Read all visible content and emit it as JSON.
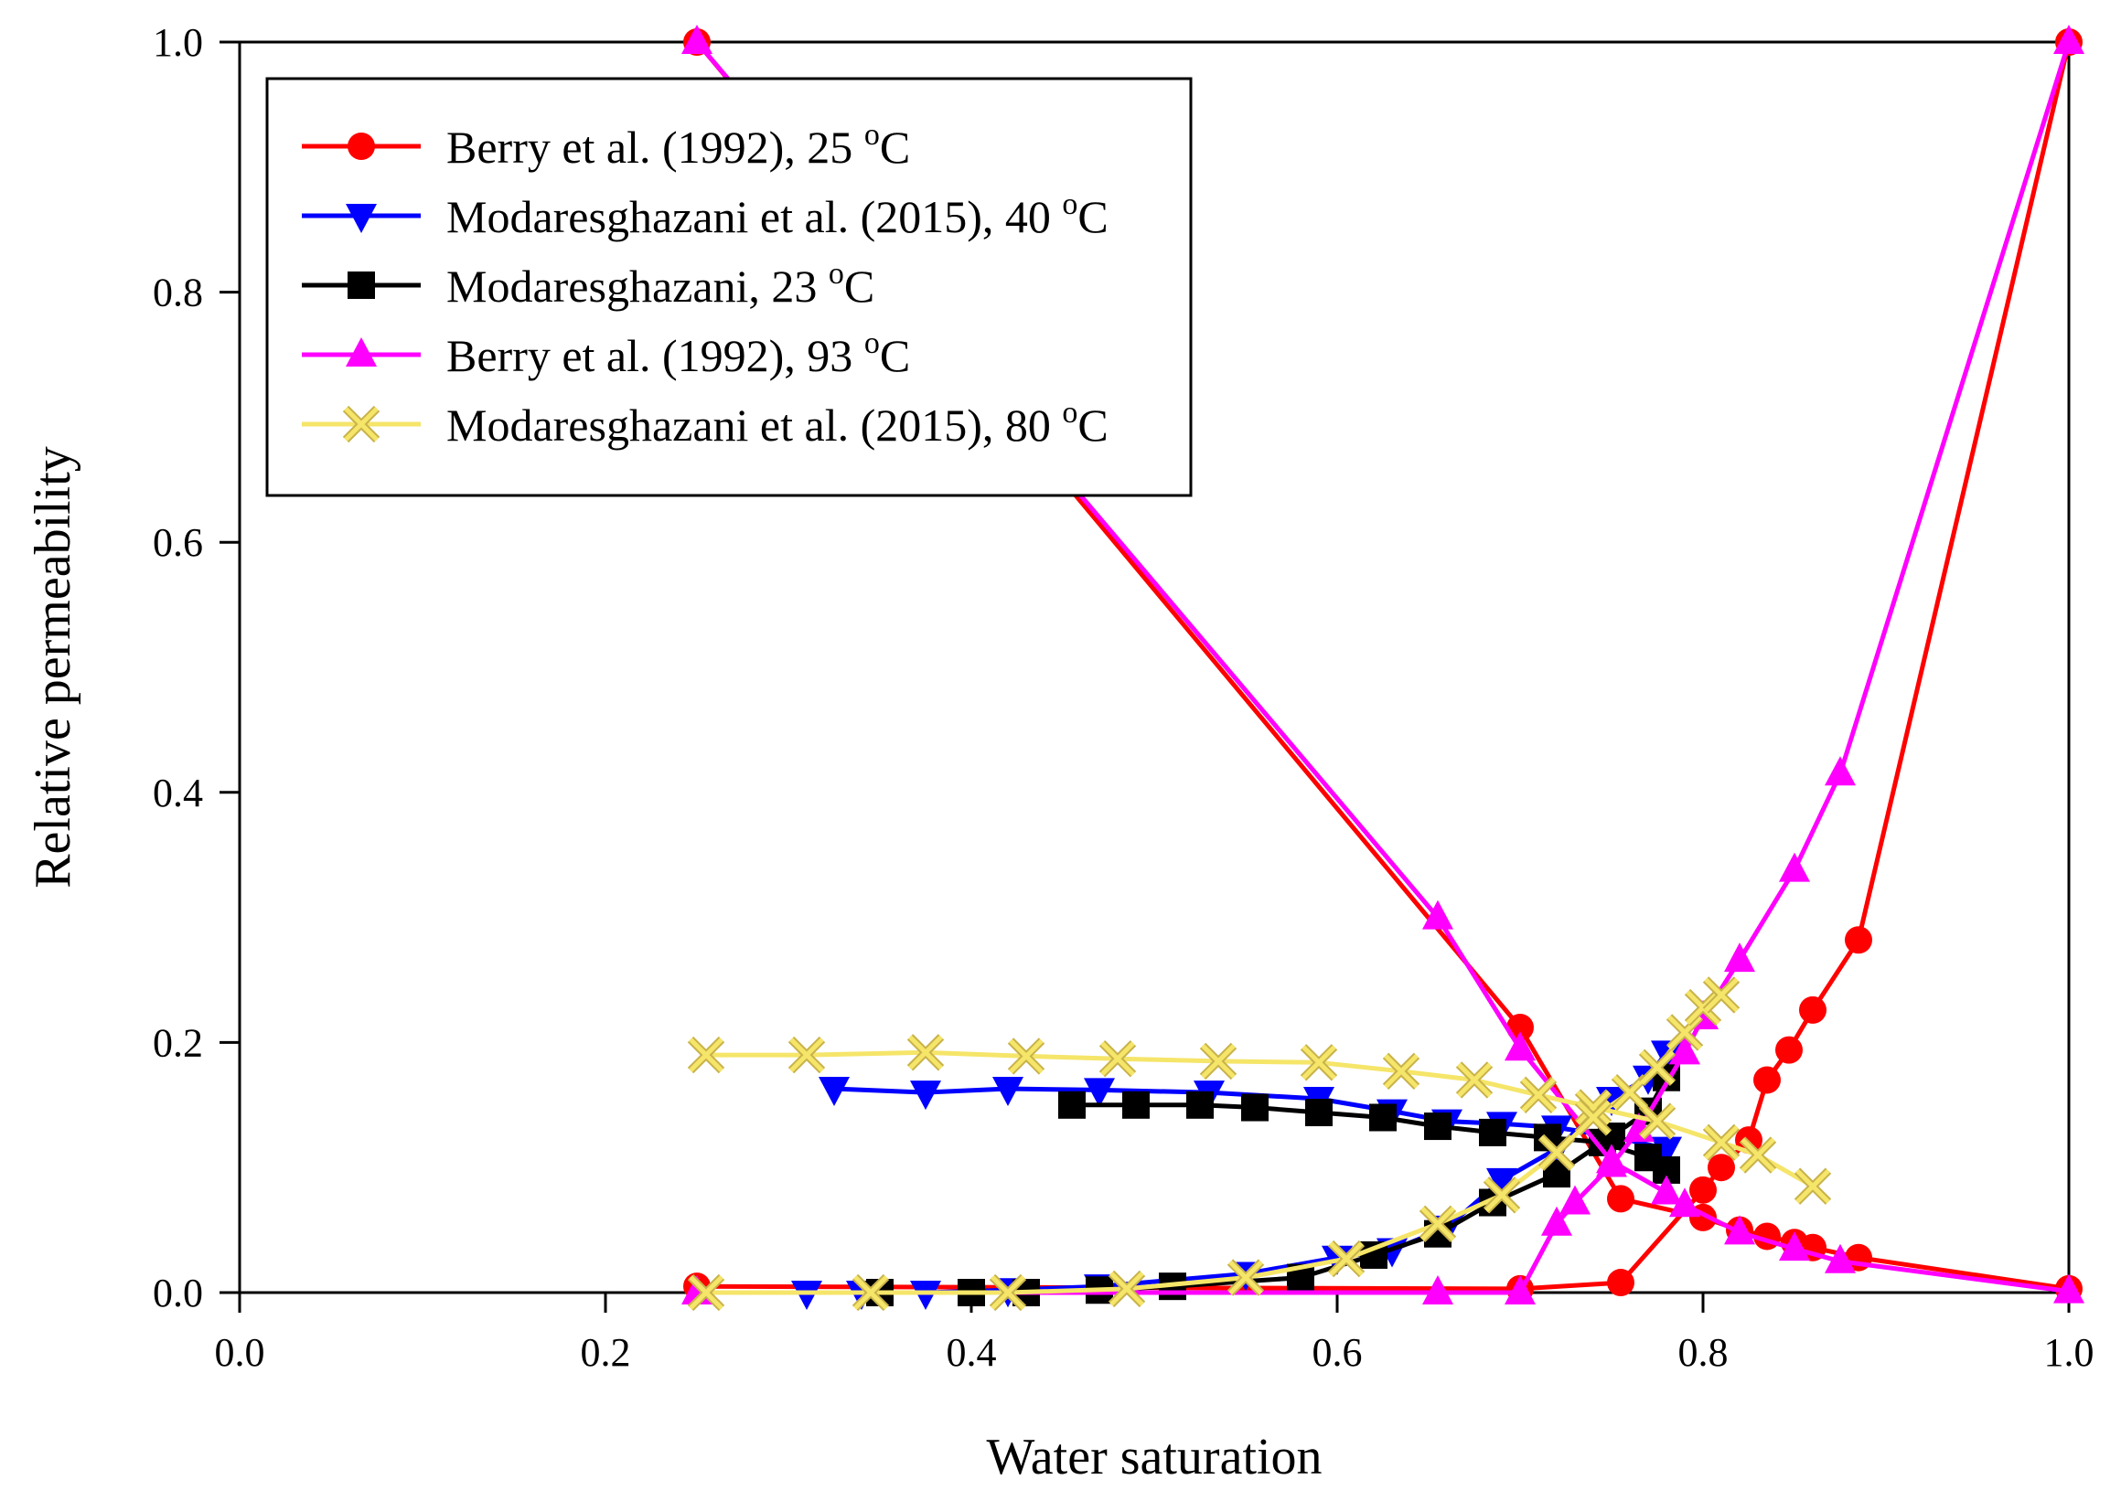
{
  "chart_data": {
    "type": "line",
    "xlabel": "Water saturation",
    "ylabel": "Relative permeability",
    "xlim": [
      0.0,
      1.0
    ],
    "ylim": [
      0.0,
      1.0
    ],
    "xticks": [
      "0.0",
      "0.2",
      "0.4",
      "0.6",
      "0.8",
      "1.0"
    ],
    "yticks": [
      "0.0",
      "0.2",
      "0.4",
      "0.6",
      "0.8",
      "1.0"
    ],
    "grid": false,
    "legend_position": "top-left",
    "series": [
      {
        "name": "Berry et al. (1992), 25",
        "unit_sup": "o",
        "unit": "C",
        "color": "#ff0000",
        "marker": "circle",
        "curves": [
          {
            "x": [
              0.25,
              0.7,
              0.755,
              0.8,
              0.82,
              0.835,
              0.85,
              0.86,
              0.885,
              1.0
            ],
            "y": [
              1.0,
              0.212,
              0.075,
              0.06,
              0.05,
              0.045,
              0.04,
              0.036,
              0.028,
              0.003
            ]
          },
          {
            "x": [
              0.25,
              0.7,
              0.755,
              0.8,
              0.81,
              0.825,
              0.835,
              0.847,
              0.86,
              0.885,
              1.0
            ],
            "y": [
              0.005,
              0.003,
              0.008,
              0.082,
              0.1,
              0.122,
              0.17,
              0.194,
              0.226,
              0.282,
              1.0
            ]
          }
        ]
      },
      {
        "name": "Modaresghazani et al. (2015), 40",
        "unit_sup": "o",
        "unit": "C",
        "color": "#0000ff",
        "marker": "triangle-down",
        "curves": [
          {
            "x": [
              0.325,
              0.375,
              0.42,
              0.47,
              0.53,
              0.59,
              0.63,
              0.66,
              0.69,
              0.72,
              0.75,
              0.78
            ],
            "y": [
              0.163,
              0.16,
              0.163,
              0.162,
              0.16,
              0.155,
              0.145,
              0.137,
              0.135,
              0.132,
              0.125,
              0.115
            ]
          },
          {
            "x": [
              0.31,
              0.34,
              0.375,
              0.42,
              0.47,
              0.55,
              0.6,
              0.63,
              0.66,
              0.69,
              0.72,
              0.75,
              0.77,
              0.78
            ],
            "y": [
              0.0,
              0.0,
              0.0,
              0.002,
              0.005,
              0.015,
              0.028,
              0.034,
              0.052,
              0.09,
              0.115,
              0.155,
              0.172,
              0.192
            ]
          }
        ]
      },
      {
        "name": "Modaresghazani, 23",
        "unit_sup": "o",
        "unit": "C",
        "color": "#000000",
        "marker": "square",
        "curves": [
          {
            "x": [
              0.455,
              0.49,
              0.525,
              0.555,
              0.59,
              0.625,
              0.655,
              0.685,
              0.715,
              0.745,
              0.77,
              0.78
            ],
            "y": [
              0.15,
              0.15,
              0.15,
              0.148,
              0.144,
              0.14,
              0.133,
              0.128,
              0.124,
              0.12,
              0.108,
              0.098
            ]
          },
          {
            "x": [
              0.35,
              0.4,
              0.43,
              0.47,
              0.51,
              0.58,
              0.62,
              0.655,
              0.685,
              0.72,
              0.75,
              0.77,
              0.78
            ],
            "y": [
              0.0,
              0.0,
              0.0,
              0.002,
              0.005,
              0.012,
              0.03,
              0.047,
              0.072,
              0.095,
              0.125,
              0.145,
              0.172
            ]
          }
        ]
      },
      {
        "name": "Berry et al. (1992), 93",
        "unit_sup": "o",
        "unit": "C",
        "color": "#ff00ff",
        "marker": "triangle-up",
        "curves": [
          {
            "x": [
              0.25,
              0.655,
              0.7,
              0.75,
              0.78,
              0.79,
              0.82,
              0.85,
              0.875,
              1.0
            ],
            "y": [
              1.0,
              0.3,
              0.195,
              0.105,
              0.08,
              0.07,
              0.048,
              0.035,
              0.025,
              0.001
            ]
          },
          {
            "x": [
              0.25,
              0.655,
              0.7,
              0.72,
              0.73,
              0.75,
              0.765,
              0.79,
              0.8,
              0.82,
              0.85,
              0.875,
              1.0
            ],
            "y": [
              0.0,
              0.0,
              0.0,
              0.055,
              0.072,
              0.102,
              0.13,
              0.192,
              0.22,
              0.266,
              0.338,
              0.415,
              1.0
            ]
          }
        ]
      },
      {
        "name": "Modaresghazani et al. (2015), 80",
        "unit_sup": "o",
        "unit": "C",
        "color": "#f5e569",
        "marker": "x",
        "curves": [
          {
            "x": [
              0.255,
              0.31,
              0.375,
              0.43,
              0.48,
              0.535,
              0.59,
              0.635,
              0.675,
              0.71,
              0.74,
              0.775,
              0.81,
              0.83,
              0.86
            ],
            "y": [
              0.19,
              0.19,
              0.192,
              0.189,
              0.187,
              0.185,
              0.184,
              0.177,
              0.17,
              0.158,
              0.148,
              0.137,
              0.12,
              0.11,
              0.085
            ]
          },
          {
            "x": [
              0.255,
              0.345,
              0.42,
              0.485,
              0.55,
              0.605,
              0.655,
              0.69,
              0.72,
              0.74,
              0.76,
              0.775,
              0.79,
              0.8,
              0.81
            ],
            "y": [
              0.0,
              0.0,
              0.0,
              0.003,
              0.012,
              0.027,
              0.055,
              0.078,
              0.112,
              0.14,
              0.16,
              0.18,
              0.208,
              0.228,
              0.238
            ]
          }
        ]
      }
    ]
  }
}
